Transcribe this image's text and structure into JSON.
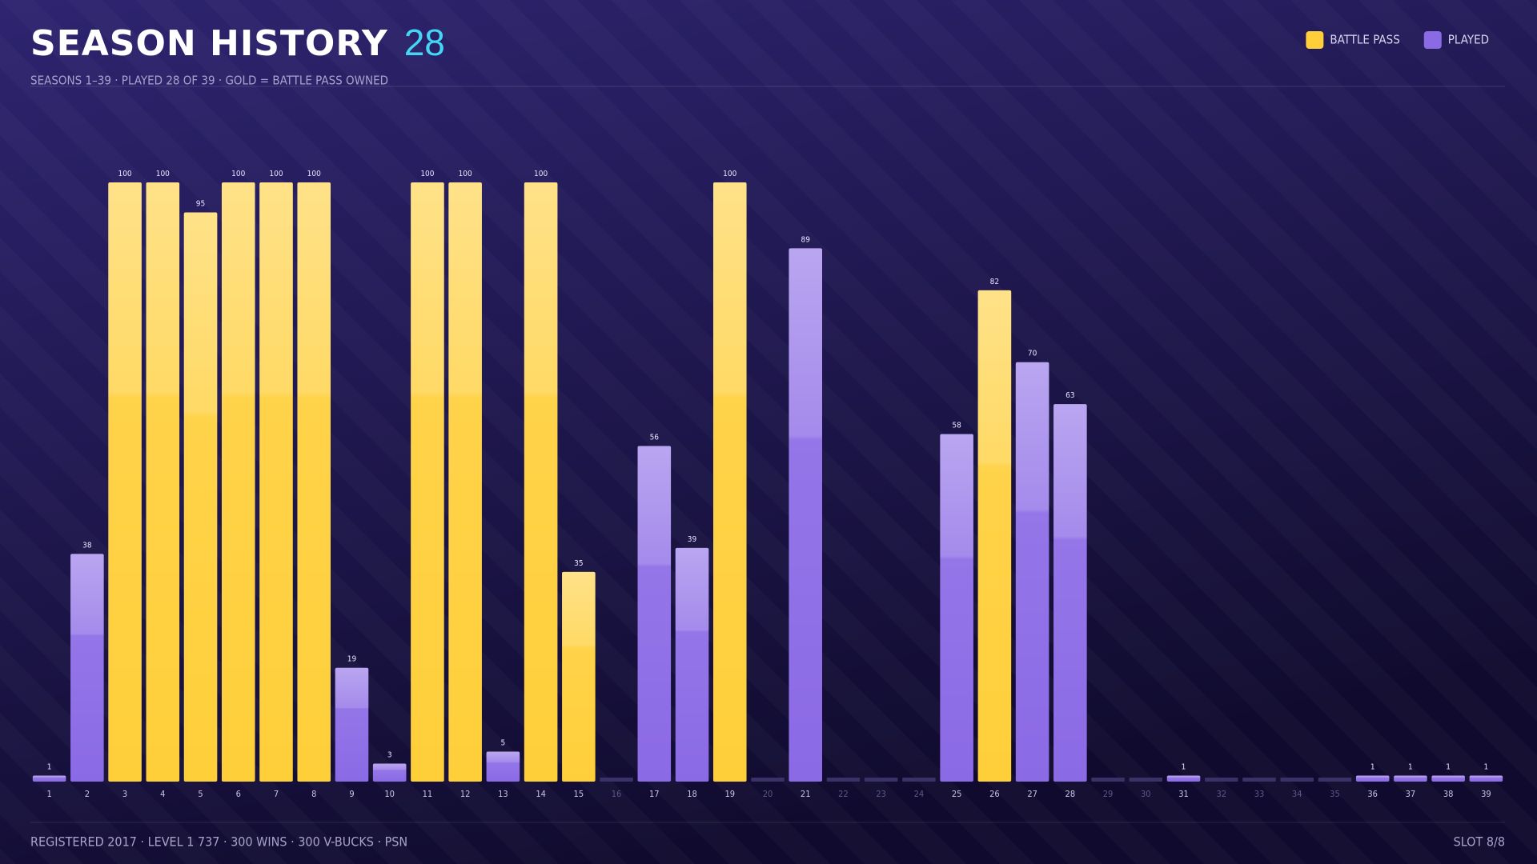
{
  "chart_data": {
    "type": "bar",
    "title": "SEASON HISTORY",
    "title_badge": "28",
    "subtitle": "SEASONS 1–39 · PLAYED 28 OF 39 · GOLD = BATTLE PASS OWNED",
    "footer_left": "REGISTERED 2017 · LEVEL 1 737 · 300 WINS · 300 V-BUCKS · PSN",
    "footer_right": "SLOT 8/8",
    "categories": [
      "1",
      "2",
      "3",
      "4",
      "5",
      "6",
      "7",
      "8",
      "9",
      "10",
      "11",
      "12",
      "13",
      "14",
      "15",
      "16",
      "17",
      "18",
      "19",
      "20",
      "21",
      "22",
      "23",
      "24",
      "25",
      "26",
      "27",
      "28",
      "29",
      "30",
      "31",
      "32",
      "33",
      "34",
      "35",
      "36",
      "37",
      "38",
      "39"
    ],
    "series": [
      {
        "name": "BATTLE PASS",
        "color": "#ffcf3a",
        "values": [
          null,
          null,
          100,
          100,
          95,
          100,
          100,
          100,
          null,
          null,
          100,
          100,
          null,
          100,
          35,
          null,
          null,
          null,
          100,
          null,
          null,
          null,
          null,
          null,
          null,
          82,
          null,
          null,
          null,
          null,
          null,
          null,
          null,
          null,
          null,
          null,
          null,
          null,
          null
        ]
      },
      {
        "name": "PLAYED",
        "color": "#8b6ae6",
        "values": [
          1,
          38,
          null,
          null,
          null,
          null,
          null,
          null,
          19,
          3,
          null,
          null,
          5,
          null,
          null,
          null,
          56,
          39,
          null,
          null,
          89,
          null,
          null,
          null,
          58,
          null,
          70,
          63,
          null,
          null,
          1,
          null,
          null,
          null,
          null,
          1,
          1,
          1,
          1
        ]
      }
    ],
    "ylim": [
      0,
      100
    ],
    "legend": "top-right"
  }
}
